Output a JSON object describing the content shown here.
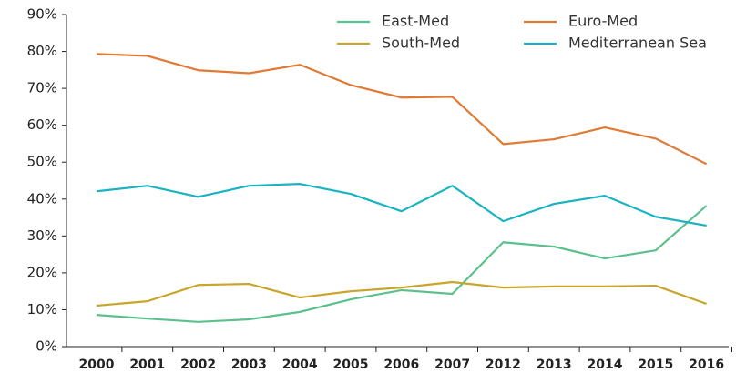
{
  "chart_data": {
    "type": "line",
    "categories": [
      "2000",
      "2001",
      "2002",
      "2003",
      "2004",
      "2005",
      "2006",
      "2007",
      "2012",
      "2013",
      "2014",
      "2015",
      "2016"
    ],
    "series": [
      {
        "name": "East-Med",
        "color": "#5cc08e",
        "values": [
          8.6,
          7.6,
          6.7,
          7.4,
          9.4,
          12.8,
          15.3,
          14.3,
          28.3,
          27.1,
          23.9,
          26.1,
          38.2
        ]
      },
      {
        "name": "Euro-Med",
        "color": "#e07a35",
        "values": [
          79.3,
          78.8,
          74.9,
          74.1,
          76.4,
          70.9,
          67.5,
          67.7,
          54.9,
          56.2,
          59.4,
          56.4,
          49.5
        ]
      },
      {
        "name": "South-Med",
        "color": "#c8a52b",
        "values": [
          11.1,
          12.3,
          16.7,
          17.0,
          13.3,
          15.0,
          16.0,
          17.5,
          16.0,
          16.3,
          16.3,
          16.5,
          11.6
        ]
      },
      {
        "name": "Mediterranean Sea",
        "color": "#1ab3c1",
        "values": [
          42.1,
          43.6,
          40.6,
          43.6,
          44.1,
          41.4,
          36.7,
          43.6,
          34.0,
          38.7,
          40.9,
          35.2,
          32.8
        ]
      }
    ],
    "ylim": [
      0,
      90
    ],
    "yticks": [
      {
        "value": 0,
        "label": "0%"
      },
      {
        "value": 10,
        "label": "10%"
      },
      {
        "value": 20,
        "label": "20%"
      },
      {
        "value": 30,
        "label": "30%"
      },
      {
        "value": 40,
        "label": "40%"
      },
      {
        "value": 50,
        "label": "50%"
      },
      {
        "value": 60,
        "label": "60%"
      },
      {
        "value": 70,
        "label": "70%"
      },
      {
        "value": 80,
        "label": "80%"
      },
      {
        "value": 90,
        "label": "90%"
      }
    ],
    "grid": false,
    "legend": "top-right"
  }
}
